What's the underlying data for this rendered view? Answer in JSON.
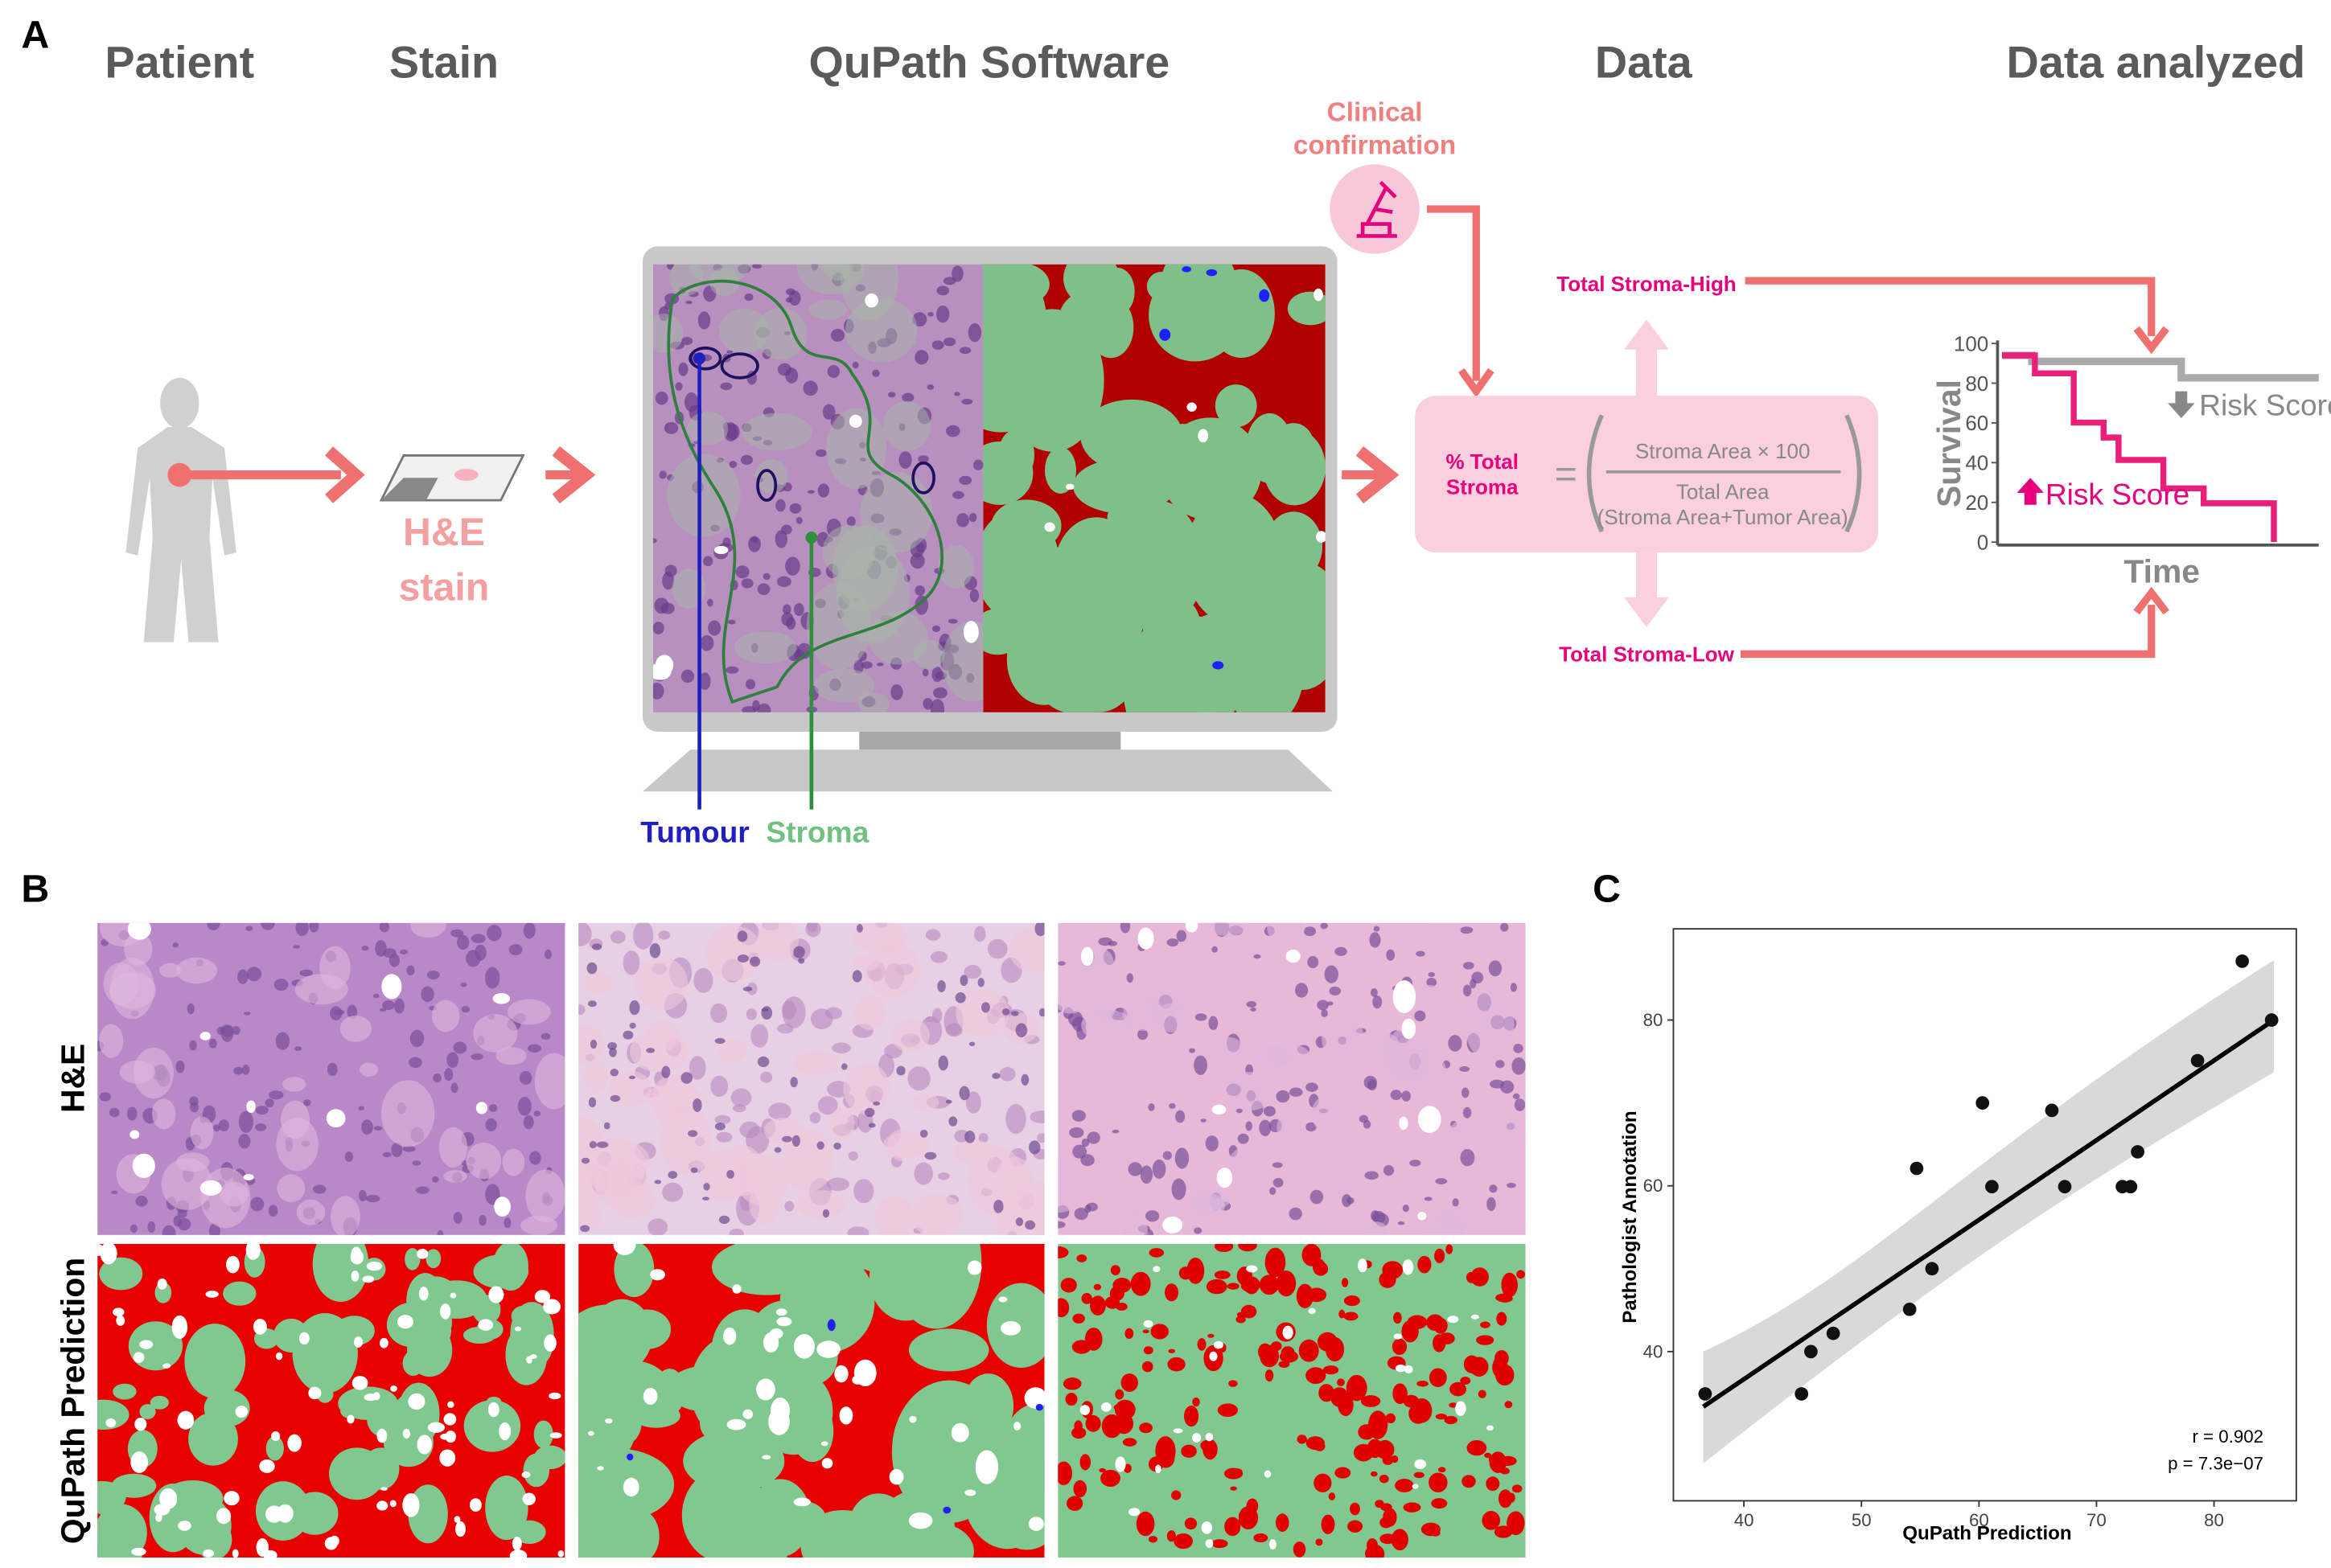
{
  "panel_a": {
    "label": "A",
    "headers": [
      "Patient",
      "Stain",
      "QuPath Software",
      "Data",
      "Data analyzed"
    ],
    "stain_label": [
      "H&E",
      "stain"
    ],
    "clinical": [
      "Clinical",
      "confirmation"
    ],
    "tumour": "Tumour",
    "stroma": "Stroma",
    "formula": {
      "lhs": [
        "% Total",
        "Stroma"
      ],
      "equals": "=",
      "numerator": "Stroma Area × 100",
      "denominator": [
        "Total Area",
        "(Stroma Area+Tumor Area)"
      ]
    },
    "high": "Total Stroma-High",
    "low": "Total Stroma-Low",
    "km": {
      "yticks": [
        0,
        20,
        40,
        60,
        80,
        100
      ],
      "ylim": [
        0,
        100
      ],
      "ylabel": "Survival",
      "xlabel": "Time",
      "risk_low": "Risk Score",
      "risk_high": "Risk Score"
    }
  },
  "panel_b": {
    "label": "B",
    "rows": [
      "H&E",
      "QuPath Prediction"
    ]
  },
  "panel_c_label": "C",
  "chart_data": {
    "type": "scatter",
    "x": [
      36.7,
      44.9,
      45.7,
      47.6,
      54.1,
      54.7,
      56,
      60.3,
      61.1,
      66.2,
      67.3,
      72.2,
      72.9,
      73.5,
      78.6,
      82.4,
      84.9
    ],
    "values": [
      34.9,
      34.9,
      40,
      42.2,
      45.1,
      62.1,
      50,
      70,
      59.9,
      69.1,
      59.9,
      59.9,
      59.9,
      64.1,
      75.1,
      87.1,
      80
    ],
    "color": "#111111",
    "xlabel": "QuPath Prediction",
    "ylabel": "Pathologist Annotation",
    "xlim": [
      34,
      87
    ],
    "ylim": [
      22,
      91
    ],
    "xticks": [
      40,
      50,
      60,
      70,
      80
    ],
    "yticks": [
      40,
      60,
      80
    ],
    "annotations": [
      "r = 0.902",
      "p = 7.3e−07"
    ]
  }
}
